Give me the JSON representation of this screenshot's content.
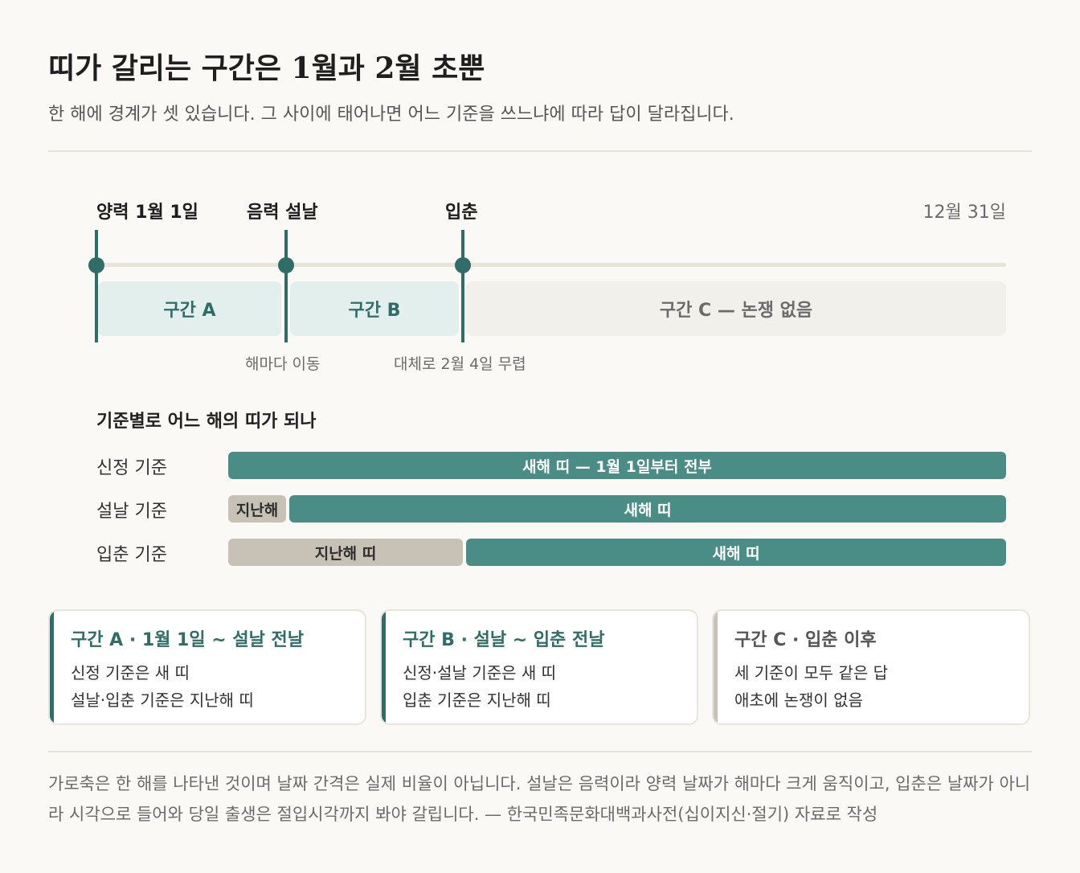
{
  "header": {
    "title": "띠가 갈리는 구간은 1월과 2월 초뿐",
    "subtitle": "한 해에 경계가 셋 있습니다. 그 사이에 태어나면 어느 기준을 쓰느냐에 따라 답이 달라집니다."
  },
  "timeline": {
    "markers": [
      "양력 1월 1일",
      "음력 설날",
      "입춘"
    ],
    "end_label": "12월 31일",
    "segments": [
      "구간 A",
      "구간 B",
      "구간 C — 논쟁 없음"
    ],
    "notes": [
      "해마다 이동",
      "대체로 2월 4일 무렵"
    ]
  },
  "criteria": {
    "title": "기준별로 어느 해의 띠가 되나",
    "rows": [
      {
        "label": "신정 기준",
        "bars": [
          "새해 띠 — 1월 1일부터 전부"
        ]
      },
      {
        "label": "설날 기준",
        "bars": [
          "지난해",
          "새해 띠"
        ]
      },
      {
        "label": "입춘 기준",
        "bars": [
          "지난해 띠",
          "새해 띠"
        ]
      }
    ]
  },
  "cards": [
    {
      "title": "구간 A · 1월 1일 ~ 설날 전날",
      "lines": [
        "신정 기준은 새 띠",
        "설날·입춘 기준은 지난해 띠"
      ]
    },
    {
      "title": "구간 B · 설날 ~ 입춘 전날",
      "lines": [
        "신정·설날 기준은 새 띠",
        "입춘 기준은 지난해 띠"
      ]
    },
    {
      "title": "구간 C · 입춘 이후",
      "lines": [
        "세 기준이 모두 같은 답",
        "애초에 논쟁이 없음"
      ]
    }
  ],
  "footnote": "가로축은 한 해를 나타낸 것이며 날짜 간격은 실제 비율이 아닙니다. 설날은 음력이라 양력 날짜가 해마다 크게 움직이고, 입춘은 날짜가 아니라 시각으로 들어와 당일 출생은 절입시각까지 봐야 갈립니다. — 한국민족문화대백과사전(십이지신·절기) 자료로 작성",
  "colors": {
    "accent": "#2f6d68",
    "new_year_bar": "#4a8c86",
    "previous_year_bar": "#c8c2b6",
    "segment_tint": "#e3efed",
    "background": "#faf9f6"
  }
}
